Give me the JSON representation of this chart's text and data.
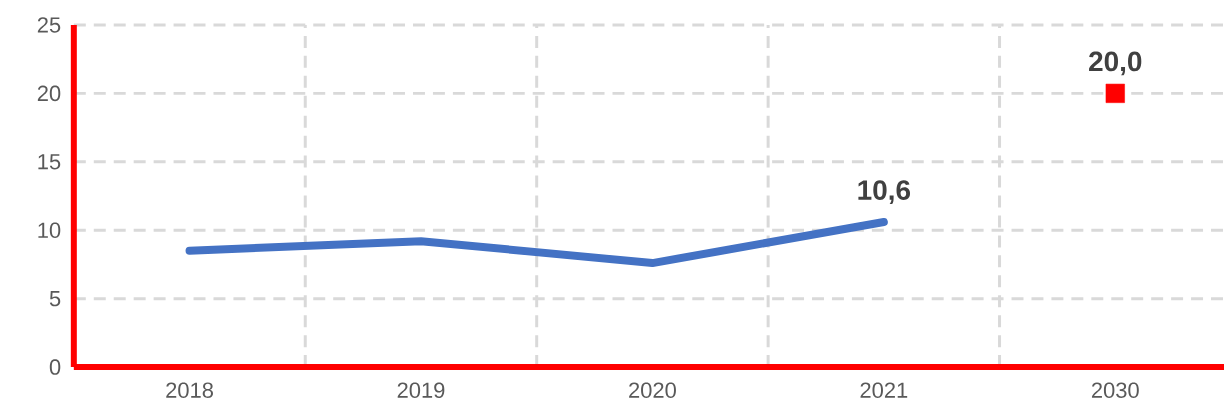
{
  "chart_data": {
    "type": "line",
    "categories": [
      "2018",
      "2019",
      "2020",
      "2021",
      "2030"
    ],
    "series": [
      {
        "color": "#4472c4",
        "marker": "none",
        "values": [
          8.5,
          9.2,
          7.6,
          10.6,
          null
        ],
        "value_labels": [
          null,
          null,
          null,
          "10,6",
          null
        ]
      },
      {
        "type": "scatter",
        "color": "#ff0000",
        "marker": "square",
        "values": [
          null,
          null,
          null,
          null,
          20.0
        ],
        "value_labels": [
          null,
          null,
          null,
          null,
          "20,0"
        ]
      }
    ],
    "ylim": [
      0,
      25
    ],
    "yticks": [
      0,
      5,
      10,
      15,
      20,
      25
    ],
    "grid": true
  }
}
